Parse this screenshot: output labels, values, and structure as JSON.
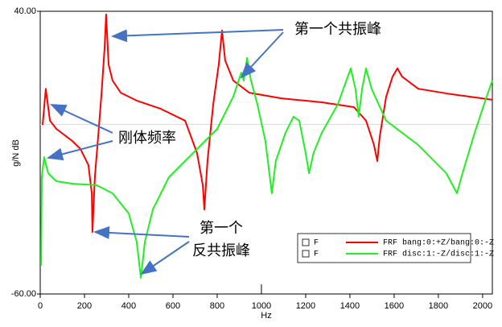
{
  "chart_data": {
    "type": "line",
    "x_label": "Hz",
    "y_label": "g/N dB",
    "xlim": [
      0,
      2044
    ],
    "ylim": [
      -60,
      40
    ],
    "xticks": [
      0,
      200,
      400,
      600,
      800,
      1000,
      1200,
      1400,
      1600,
      1800,
      2000
    ],
    "yticks": [
      {
        "value": 40,
        "label": "40.00"
      },
      {
        "value": -60,
        "label": "-60.00"
      }
    ],
    "reference_line": 0,
    "series": [
      {
        "name": "FRF bang:0:+Z/bang:0:-Z",
        "legend_prefix": "F",
        "color": "#ff0000",
        "x": [
          11,
          25,
          44,
          73,
          145,
          182,
          218,
          233,
          236,
          247,
          262,
          276,
          291,
          298,
          309,
          327,
          364,
          436,
          545,
          655,
          709,
          735,
          742,
          756,
          782,
          807,
          822,
          836,
          873,
          945,
          1091,
          1273,
          1418,
          1473,
          1509,
          1524,
          1535,
          1564,
          1593,
          1615,
          1636,
          1709,
          1855,
          2044
        ],
        "values": [
          -0.2,
          12.6,
          1.3,
          -1.6,
          -5.9,
          -8.7,
          -14.4,
          -24.4,
          -38.1,
          -18.7,
          -4.4,
          9.8,
          26.9,
          38.9,
          21.2,
          15.5,
          11.2,
          8.4,
          5.5,
          1.3,
          -10.1,
          -21.5,
          -30.1,
          -13.0,
          7.0,
          21.2,
          33.2,
          22.6,
          15.5,
          11.2,
          9.2,
          7.8,
          6.1,
          1.3,
          -7.3,
          -13.0,
          -4.4,
          9.8,
          16.9,
          19.8,
          16.9,
          12.6,
          10.7,
          8.7
        ]
      },
      {
        "name": "FRF disc:1:-Z/disc:1:-Z",
        "legend_prefix": "F",
        "color": "#22ee22",
        "x": [
          4,
          7,
          18,
          36,
          73,
          145,
          255,
          327,
          400,
          436,
          455,
          473,
          509,
          582,
          691,
          800,
          873,
          909,
          920,
          935,
          953,
          982,
          1018,
          1047,
          1065,
          1109,
          1145,
          1171,
          1200,
          1215,
          1236,
          1273,
          1345,
          1404,
          1425,
          1440,
          1455,
          1473,
          1498,
          1564,
          1709,
          1836,
          1884,
          1909,
          1964,
          2018,
          2044
        ],
        "values": [
          -50.0,
          -18.7,
          -11.6,
          -17.3,
          -20.1,
          -21.0,
          -21.5,
          -24.4,
          -31.5,
          -41.5,
          -54.3,
          -41.5,
          -30.1,
          -18.7,
          -10.1,
          -1.6,
          9.8,
          18.3,
          15.5,
          23.5,
          15.5,
          7.0,
          -5.9,
          -24.4,
          -13.0,
          -3.0,
          2.7,
          1.3,
          -10.1,
          -17.3,
          -10.1,
          -3.0,
          7.0,
          19.8,
          12.6,
          2.7,
          12.6,
          19.8,
          12.6,
          1.3,
          -7.3,
          -17.3,
          -24.4,
          -17.3,
          -3.0,
          9.8,
          15.5
        ]
      }
    ],
    "annotations": [
      {
        "lines": [
          "第一个共振峰"
        ]
      },
      {
        "lines": [
          "刚体频率"
        ]
      },
      {
        "lines": [
          "第一个",
          "反共振峰"
        ]
      }
    ]
  }
}
